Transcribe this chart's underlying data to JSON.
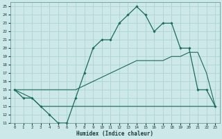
{
  "xlabel": "Humidex (Indice chaleur)",
  "xlim": [
    -0.5,
    23.5
  ],
  "ylim": [
    11,
    25.5
  ],
  "yticks": [
    11,
    12,
    13,
    14,
    15,
    16,
    17,
    18,
    19,
    20,
    21,
    22,
    23,
    24,
    25
  ],
  "xticks": [
    0,
    1,
    2,
    3,
    4,
    5,
    6,
    7,
    8,
    9,
    10,
    11,
    12,
    13,
    14,
    15,
    16,
    17,
    18,
    19,
    20,
    21,
    22,
    23
  ],
  "bg_color": "#cce8e8",
  "grid_color": "#aacece",
  "line_color": "#1a6b5a",
  "line1_x": [
    0,
    1,
    2,
    3,
    4,
    5,
    6,
    7,
    8,
    9,
    10,
    11,
    12,
    13,
    14,
    15,
    16,
    17,
    18,
    19,
    20,
    21,
    22,
    23
  ],
  "line1_y": [
    15,
    14,
    14,
    13,
    12,
    11,
    11,
    14,
    17,
    20,
    21,
    21,
    23,
    24,
    25,
    24,
    22,
    23,
    23,
    20,
    20,
    15,
    15,
    13
  ],
  "line2_x": [
    0,
    1,
    2,
    3,
    4,
    5,
    6,
    7,
    8,
    9,
    10,
    11,
    12,
    13,
    14,
    15,
    16,
    17,
    18,
    19,
    20,
    21,
    22,
    23
  ],
  "line2_y": [
    15,
    15,
    15,
    15,
    15,
    15,
    15,
    15,
    15.5,
    16,
    16.5,
    17,
    17.5,
    18,
    18.5,
    18.5,
    18.5,
    18.5,
    19,
    19,
    19.5,
    19.5,
    17,
    13
  ],
  "line3_x": [
    0,
    2,
    3,
    4,
    5,
    21,
    22,
    23
  ],
  "line3_y": [
    15,
    14,
    13,
    13,
    13,
    13,
    13,
    13
  ]
}
